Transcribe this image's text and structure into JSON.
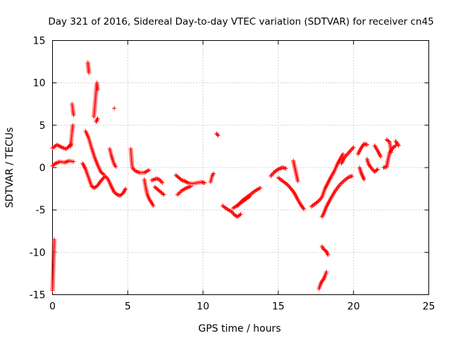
{
  "chart_data": {
    "type": "scatter",
    "title": "Day 321 of 2016, Sidereal Day-to-day VTEC variation (SDTVAR) for receiver cn45",
    "xlabel": "GPS time / hours",
    "ylabel": "SDTVAR / TECUs",
    "xlim": [
      0,
      25
    ],
    "ylim": [
      -15,
      15
    ],
    "xticks": [
      0,
      5,
      10,
      15,
      20,
      25
    ],
    "yticks": [
      -15,
      -10,
      -5,
      0,
      5,
      10,
      15
    ],
    "grid": true,
    "marker": "plus",
    "color": "#ff0000",
    "series": [
      {
        "name": "SDTVAR",
        "segments": [
          [
            [
              0.0,
              2.3
            ],
            [
              0.3,
              2.7
            ],
            [
              0.6,
              2.4
            ],
            [
              0.9,
              2.2
            ],
            [
              1.1,
              2.5
            ],
            [
              1.25,
              2.8
            ]
          ],
          [
            [
              1.2,
              2.5
            ],
            [
              1.25,
              3.3
            ],
            [
              1.3,
              4.2
            ],
            [
              1.35,
              5.0
            ]
          ],
          [
            [
              0.0,
              0.2
            ],
            [
              0.2,
              0.5
            ],
            [
              0.5,
              0.7
            ],
            [
              0.8,
              0.6
            ],
            [
              1.1,
              0.8
            ],
            [
              1.4,
              0.7
            ]
          ],
          [
            [
              0.0,
              -14.5
            ],
            [
              0.02,
              -13.5
            ],
            [
              0.04,
              -12.5
            ],
            [
              0.06,
              -11.5
            ],
            [
              0.08,
              -10.5
            ],
            [
              0.1,
              -9.5
            ],
            [
              0.12,
              -8.5
            ]
          ],
          [
            [
              1.3,
              7.5
            ],
            [
              1.35,
              6.8
            ],
            [
              1.4,
              6.2
            ]
          ],
          [
            [
              2.2,
              4.3
            ],
            [
              2.4,
              3.5
            ],
            [
              2.6,
              2.3
            ],
            [
              2.8,
              1.2
            ],
            [
              3.0,
              0.3
            ],
            [
              3.2,
              -0.5
            ],
            [
              3.4,
              -0.8
            ]
          ],
          [
            [
              2.0,
              0.5
            ],
            [
              2.2,
              -0.2
            ],
            [
              2.4,
              -1.2
            ],
            [
              2.6,
              -2.2
            ],
            [
              2.8,
              -2.4
            ],
            [
              3.0,
              -2.1
            ],
            [
              3.2,
              -1.6
            ],
            [
              3.5,
              -1.0
            ],
            [
              3.7,
              -1.4
            ],
            [
              3.9,
              -2.2
            ],
            [
              4.1,
              -2.9
            ],
            [
              4.3,
              -3.2
            ],
            [
              4.5,
              -3.3
            ],
            [
              4.7,
              -3.0
            ],
            [
              4.85,
              -2.5
            ]
          ],
          [
            [
              2.35,
              12.4
            ],
            [
              2.38,
              11.8
            ],
            [
              2.42,
              11.2
            ]
          ],
          [
            [
              2.75,
              6.0
            ],
            [
              2.8,
              7.0
            ],
            [
              2.85,
              8.0
            ],
            [
              2.9,
              9.0
            ],
            [
              2.95,
              10.0
            ],
            [
              3.0,
              9.2
            ]
          ],
          [
            [
              2.9,
              5.4
            ],
            [
              3.0,
              5.8
            ]
          ],
          [
            [
              4.1,
              7.0
            ]
          ],
          [
            [
              3.8,
              2.2
            ],
            [
              3.9,
              1.5
            ],
            [
              4.0,
              0.9
            ],
            [
              4.1,
              0.4
            ],
            [
              4.2,
              0.1
            ]
          ],
          [
            [
              5.2,
              2.2
            ],
            [
              5.25,
              1.0
            ],
            [
              5.3,
              0.0
            ],
            [
              5.5,
              -0.4
            ],
            [
              5.8,
              -0.6
            ],
            [
              6.1,
              -0.6
            ],
            [
              6.4,
              -0.3
            ]
          ],
          [
            [
              6.1,
              -1.4
            ],
            [
              6.2,
              -2.4
            ],
            [
              6.3,
              -3.2
            ],
            [
              6.45,
              -3.8
            ],
            [
              6.6,
              -4.2
            ],
            [
              6.7,
              -4.5
            ]
          ],
          [
            [
              6.6,
              -1.5
            ],
            [
              6.9,
              -1.3
            ],
            [
              7.1,
              -1.4
            ],
            [
              7.3,
              -1.8
            ]
          ],
          [
            [
              6.8,
              -2.3
            ],
            [
              7.0,
              -2.6
            ],
            [
              7.2,
              -2.9
            ],
            [
              7.4,
              -3.2
            ]
          ],
          [
            [
              8.2,
              -0.9
            ],
            [
              8.4,
              -1.2
            ],
            [
              8.6,
              -1.5
            ],
            [
              8.8,
              -1.6
            ],
            [
              9.0,
              -1.8
            ],
            [
              9.3,
              -1.9
            ],
            [
              9.6,
              -1.8
            ],
            [
              9.9,
              -1.7
            ],
            [
              10.1,
              -1.8
            ]
          ],
          [
            [
              8.3,
              -3.2
            ],
            [
              8.6,
              -2.7
            ],
            [
              8.9,
              -2.4
            ],
            [
              9.2,
              -2.2
            ]
          ],
          [
            [
              10.5,
              -1.7
            ],
            [
              10.6,
              -1.0
            ],
            [
              10.7,
              -0.7
            ]
          ],
          [
            [
              10.9,
              4.0
            ],
            [
              11.0,
              3.8
            ]
          ],
          [
            [
              11.3,
              -4.5
            ],
            [
              11.6,
              -4.9
            ],
            [
              11.9,
              -5.2
            ],
            [
              12.1,
              -5.6
            ],
            [
              12.3,
              -5.8
            ],
            [
              12.5,
              -5.5
            ]
          ],
          [
            [
              12.3,
              -4.5
            ],
            [
              12.6,
              -3.9
            ],
            [
              12.9,
              -3.5
            ],
            [
              13.2,
              -3.1
            ],
            [
              13.5,
              -2.7
            ],
            [
              13.8,
              -2.4
            ]
          ],
          [
            [
              12.0,
              -4.8
            ],
            [
              12.4,
              -4.3
            ],
            [
              12.8,
              -3.8
            ],
            [
              13.1,
              -3.4
            ]
          ],
          [
            [
              14.5,
              -1.0
            ],
            [
              14.7,
              -0.6
            ],
            [
              14.9,
              -0.3
            ],
            [
              15.1,
              -0.1
            ],
            [
              15.3,
              0.0
            ],
            [
              15.5,
              -0.1
            ]
          ],
          [
            [
              15.0,
              -1.2
            ],
            [
              15.3,
              -1.6
            ],
            [
              15.6,
              -2.0
            ],
            [
              15.9,
              -2.6
            ],
            [
              16.1,
              -3.1
            ],
            [
              16.3,
              -3.8
            ],
            [
              16.5,
              -4.4
            ],
            [
              16.7,
              -4.9
            ]
          ],
          [
            [
              16.0,
              0.8
            ],
            [
              16.1,
              0.0
            ],
            [
              16.2,
              -0.8
            ],
            [
              16.3,
              -1.6
            ]
          ],
          [
            [
              17.2,
              -4.6
            ],
            [
              17.5,
              -4.2
            ],
            [
              17.7,
              -3.9
            ],
            [
              17.9,
              -3.5
            ],
            [
              18.1,
              -2.5
            ],
            [
              18.3,
              -1.8
            ],
            [
              18.5,
              -1.1
            ],
            [
              18.7,
              -0.5
            ],
            [
              18.9,
              0.3
            ],
            [
              19.1,
              1.0
            ],
            [
              19.3,
              1.6
            ]
          ],
          [
            [
              17.9,
              -5.8
            ],
            [
              18.0,
              -5.5
            ],
            [
              18.2,
              -4.6
            ],
            [
              18.5,
              -3.6
            ],
            [
              18.8,
              -2.7
            ],
            [
              19.1,
              -2.0
            ],
            [
              19.4,
              -1.5
            ],
            [
              19.7,
              -1.1
            ],
            [
              19.9,
              -1.0
            ]
          ],
          [
            [
              19.2,
              0.5
            ],
            [
              19.4,
              1.2
            ],
            [
              19.6,
              1.6
            ],
            [
              19.8,
              2.0
            ],
            [
              20.0,
              2.4
            ]
          ],
          [
            [
              17.7,
              -14.3
            ],
            [
              17.8,
              -13.8
            ],
            [
              17.9,
              -13.4
            ],
            [
              18.0,
              -13.2
            ],
            [
              18.1,
              -12.8
            ],
            [
              18.2,
              -12.3
            ]
          ],
          [
            [
              17.9,
              -9.3
            ],
            [
              18.0,
              -9.6
            ],
            [
              18.2,
              -9.9
            ],
            [
              18.3,
              -10.3
            ]
          ],
          [
            [
              20.3,
              1.6
            ],
            [
              20.5,
              2.3
            ],
            [
              20.7,
              2.8
            ],
            [
              20.9,
              2.7
            ]
          ],
          [
            [
              20.4,
              0.0
            ],
            [
              20.5,
              -0.6
            ],
            [
              20.6,
              -1.0
            ],
            [
              20.7,
              -1.4
            ]
          ],
          [
            [
              20.9,
              1.0
            ],
            [
              21.0,
              0.4
            ],
            [
              21.2,
              -0.1
            ],
            [
              21.4,
              -0.5
            ],
            [
              21.6,
              -0.2
            ]
          ],
          [
            [
              21.4,
              2.6
            ],
            [
              21.6,
              2.0
            ],
            [
              21.8,
              1.3
            ]
          ],
          [
            [
              22.0,
              0.0
            ],
            [
              22.2,
              0.1
            ],
            [
              22.3,
              1.0
            ],
            [
              22.4,
              1.8
            ],
            [
              22.6,
              2.3
            ],
            [
              22.8,
              2.6
            ]
          ],
          [
            [
              22.2,
              3.3
            ],
            [
              22.4,
              3.0
            ],
            [
              22.5,
              1.8
            ]
          ],
          [
            [
              22.8,
              3.1
            ],
            [
              23.0,
              2.6
            ]
          ]
        ]
      }
    ]
  }
}
